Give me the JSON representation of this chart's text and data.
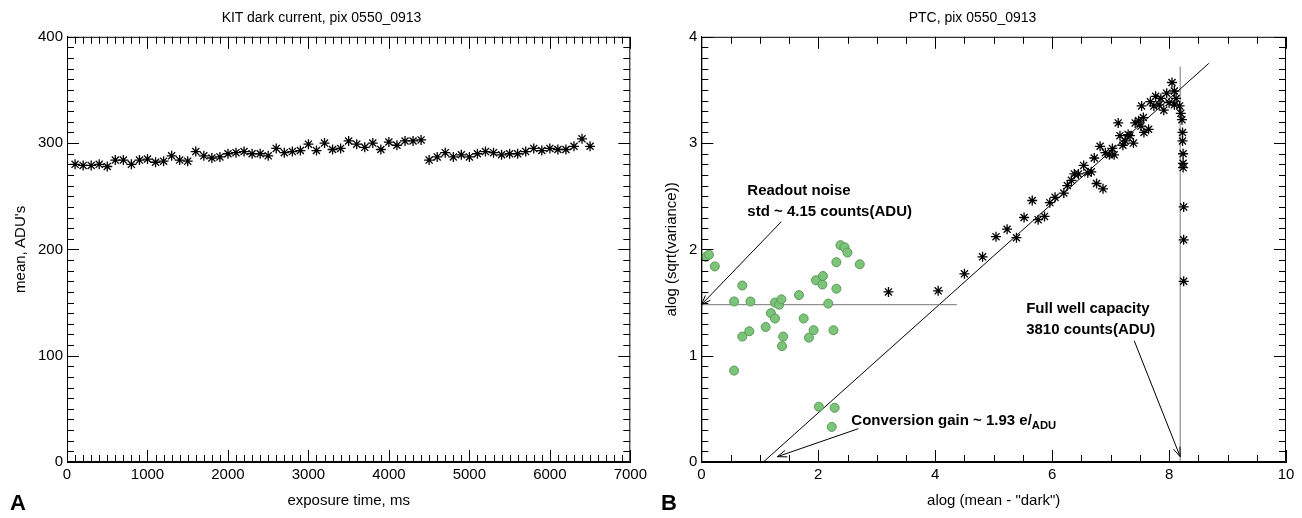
{
  "chart_data": [
    {
      "type": "scatter",
      "title": "KIT dark current, pix 0550_0913",
      "xlabel": "exposure time, ms",
      "ylabel": "mean, ADU's",
      "marker": "cross",
      "legend": false,
      "annotations": [
        "A"
      ],
      "xlim": [
        0,
        7000
      ],
      "ylim": [
        0,
        400
      ],
      "xticks": [
        0,
        {
          "value": 100,
          "label": null
        },
        {
          "value": 200,
          "label": null
        },
        {
          "value": 300,
          "label": null
        },
        {
          "value": 400,
          "label": null
        },
        {
          "value": 500,
          "label": null
        },
        {
          "value": 600,
          "label": null
        },
        {
          "value": 700,
          "label": null
        },
        {
          "value": 800,
          "label": null
        },
        {
          "value": 900,
          "label": null
        },
        1000,
        {
          "value": 1100,
          "label": null
        },
        {
          "value": 1200,
          "label": null
        },
        {
          "value": 1300,
          "label": null
        },
        {
          "value": 1400,
          "label": null
        },
        {
          "value": 1500,
          "label": null
        },
        {
          "value": 1600,
          "label": null
        },
        {
          "value": 1700,
          "label": null
        },
        {
          "value": 1800,
          "label": null
        },
        {
          "value": 1900,
          "label": null
        },
        2000,
        {
          "value": 2100,
          "label": null
        },
        {
          "value": 2200,
          "label": null
        },
        {
          "value": 2300,
          "label": null
        },
        {
          "value": 2400,
          "label": null
        },
        {
          "value": 2500,
          "label": null
        },
        {
          "value": 2600,
          "label": null
        },
        {
          "value": 2700,
          "label": null
        },
        {
          "value": 2800,
          "label": null
        },
        {
          "value": 2900,
          "label": null
        },
        3000,
        {
          "value": 3100,
          "label": null
        },
        {
          "value": 3200,
          "label": null
        },
        {
          "value": 3300,
          "label": null
        },
        {
          "value": 3400,
          "label": null
        },
        {
          "value": 3500,
          "label": null
        },
        {
          "value": 3600,
          "label": null
        },
        {
          "value": 3700,
          "label": null
        },
        {
          "value": 3800,
          "label": null
        },
        {
          "value": 3900,
          "label": null
        },
        4000,
        {
          "value": 4100,
          "label": null
        },
        {
          "value": 4200,
          "label": null
        },
        {
          "value": 4300,
          "label": null
        },
        {
          "value": 4400,
          "label": null
        },
        {
          "value": 4500,
          "label": null
        },
        {
          "value": 4600,
          "label": null
        },
        {
          "value": 4700,
          "label": null
        },
        {
          "value": 4800,
          "label": null
        },
        {
          "value": 4900,
          "label": null
        },
        5000,
        {
          "value": 5100,
          "label": null
        },
        {
          "value": 5200,
          "label": null
        },
        {
          "value": 5300,
          "label": null
        },
        {
          "value": 5400,
          "label": null
        },
        {
          "value": 5500,
          "label": null
        },
        {
          "value": 5600,
          "label": null
        },
        {
          "value": 5700,
          "label": null
        },
        {
          "value": 5800,
          "label": null
        },
        {
          "value": 5900,
          "label": null
        },
        6000,
        {
          "value": 6100,
          "label": null
        },
        {
          "value": 6200,
          "label": null
        },
        {
          "value": 6300,
          "label": null
        },
        {
          "value": 6400,
          "label": null
        },
        {
          "value": 6500,
          "label": null
        },
        {
          "value": 6600,
          "label": null
        },
        {
          "value": 6700,
          "label": null
        },
        {
          "value": 6800,
          "label": null
        },
        {
          "value": 6900,
          "label": null
        },
        7000
      ],
      "yticks": [
        0,
        {
          "value": 10,
          "label": null
        },
        {
          "value": 20,
          "label": null
        },
        {
          "value": 30,
          "label": null
        },
        {
          "value": 40,
          "label": null
        },
        {
          "value": 50,
          "label": null
        },
        {
          "value": 60,
          "label": null
        },
        {
          "value": 70,
          "label": null
        },
        {
          "value": 80,
          "label": null
        },
        {
          "value": 90,
          "label": null
        },
        100,
        {
          "value": 110,
          "label": null
        },
        {
          "value": 120,
          "label": null
        },
        {
          "value": 130,
          "label": null
        },
        {
          "value": 140,
          "label": null
        },
        {
          "value": 150,
          "label": null
        },
        {
          "value": 160,
          "label": null
        },
        {
          "value": 170,
          "label": null
        },
        {
          "value": 180,
          "label": null
        },
        {
          "value": 190,
          "label": null
        },
        200,
        {
          "value": 210,
          "label": null
        },
        {
          "value": 220,
          "label": null
        },
        {
          "value": 230,
          "label": null
        },
        {
          "value": 240,
          "label": null
        },
        {
          "value": 250,
          "label": null
        },
        {
          "value": 260,
          "label": null
        },
        {
          "value": 270,
          "label": null
        },
        {
          "value": 280,
          "label": null
        },
        {
          "value": 290,
          "label": null
        },
        300,
        {
          "value": 310,
          "label": null
        },
        {
          "value": 320,
          "label": null
        },
        {
          "value": 330,
          "label": null
        },
        {
          "value": 340,
          "label": null
        },
        {
          "value": 350,
          "label": null
        },
        {
          "value": 360,
          "label": null
        },
        {
          "value": 370,
          "label": null
        },
        {
          "value": 380,
          "label": null
        },
        {
          "value": 390,
          "label": null
        },
        400
      ],
      "x": [
        100,
        200,
        300,
        400,
        500,
        600,
        700,
        800,
        900,
        1000,
        1100,
        1200,
        1300,
        1400,
        1500,
        1600,
        1700,
        1800,
        1900,
        2000,
        2100,
        2200,
        2300,
        2400,
        2500,
        2600,
        2700,
        2800,
        2900,
        3000,
        3100,
        3200,
        3300,
        3400,
        3500,
        3600,
        3700,
        3800,
        3900,
        4000,
        4100,
        4200,
        4300,
        4400,
        4500,
        4600,
        4700,
        4800,
        4900,
        5000,
        5100,
        5200,
        5300,
        5400,
        5500,
        5600,
        5700,
        5800,
        5900,
        6000,
        6100,
        6200,
        6300,
        6400,
        6500
      ],
      "series": [
        {
          "color": "#000000",
          "values": [
            280,
            279,
            279,
            280,
            278,
            284,
            284,
            280,
            284,
            285,
            282,
            283,
            288,
            284,
            283,
            292,
            288,
            286,
            287,
            290,
            291,
            292,
            290,
            290,
            288,
            295,
            291,
            292,
            293,
            299,
            293,
            300,
            294,
            295,
            302,
            299,
            296,
            300,
            294,
            301,
            298,
            302,
            302,
            303,
            284,
            287,
            291,
            287,
            289,
            287,
            290,
            292,
            291,
            289,
            290,
            290,
            292,
            295,
            293,
            295,
            294,
            294,
            297,
            304,
            297
          ]
        }
      ]
    },
    {
      "type": "scatter",
      "title": "PTC, pix 0550_0913",
      "xlabel": "alog (mean - \"dark\")",
      "ylabel": "alog (sqrt(variance))",
      "legend": false,
      "annotations": [
        {
          "text": "Readout noise\nstd ~ 4.15 counts(ADU)",
          "x": 0,
          "y": 1.48
        },
        {
          "text": "Conversion gain ~ 1.93 e/$_{ADU}$",
          "x": 1.3,
          "y": 0.05
        },
        {
          "text": "Full well capacity\n3810 counts(ADU)",
          "x": 8.19,
          "y": 0.05
        },
        "B"
      ],
      "xlim": [
        0,
        10
      ],
      "ylim": [
        0,
        4
      ],
      "xticks": [
        0,
        {
          "value": 0.5,
          "label": null
        },
        {
          "value": 1,
          "label": null
        },
        {
          "value": 1.5,
          "label": null
        },
        2,
        {
          "value": 2.5,
          "label": null
        },
        {
          "value": 3,
          "label": null
        },
        {
          "value": 3.5,
          "label": null
        },
        4,
        {
          "value": 4.5,
          "label": null
        },
        {
          "value": 5,
          "label": null
        },
        {
          "value": 5.5,
          "label": null
        },
        6,
        {
          "value": 6.5,
          "label": null
        },
        {
          "value": 7,
          "label": null
        },
        {
          "value": 7.5,
          "label": null
        },
        8,
        {
          "value": 8.5,
          "label": null
        },
        {
          "value": 9,
          "label": null
        },
        {
          "value": 9.5,
          "label": null
        },
        10
      ],
      "yticks": [
        0,
        {
          "value": 0.1,
          "label": null
        },
        {
          "value": 0.2,
          "label": null
        },
        {
          "value": 0.3,
          "label": null
        },
        {
          "value": 0.4,
          "label": null
        },
        {
          "value": 0.5,
          "label": null
        },
        {
          "value": 0.6,
          "label": null
        },
        {
          "value": 0.7,
          "label": null
        },
        {
          "value": 0.8,
          "label": null
        },
        {
          "value": 0.9,
          "label": null
        },
        1,
        {
          "value": 1.1,
          "label": null
        },
        {
          "value": 1.2,
          "label": null
        },
        {
          "value": 1.3,
          "label": null
        },
        {
          "value": 1.4,
          "label": null
        },
        {
          "value": 1.5,
          "label": null
        },
        {
          "value": 1.6,
          "label": null
        },
        {
          "value": 1.7,
          "label": null
        },
        {
          "value": 1.8,
          "label": null
        },
        {
          "value": 1.9,
          "label": null
        },
        2,
        {
          "value": 2.1,
          "label": null
        },
        {
          "value": 2.2,
          "label": null
        },
        {
          "value": 2.3,
          "label": null
        },
        {
          "value": 2.4,
          "label": null
        },
        {
          "value": 2.5,
          "label": null
        },
        {
          "value": 2.6,
          "label": null
        },
        {
          "value": 2.7,
          "label": null
        },
        {
          "value": 2.8,
          "label": null
        },
        {
          "value": 2.9,
          "label": null
        },
        3,
        {
          "value": 3.1,
          "label": null
        },
        {
          "value": 3.2,
          "label": null
        },
        {
          "value": 3.3,
          "label": null
        },
        {
          "value": 3.4,
          "label": null
        },
        {
          "value": 3.5,
          "label": null
        },
        {
          "value": 3.6,
          "label": null
        },
        {
          "value": 3.7,
          "label": null
        },
        {
          "value": 3.8,
          "label": null
        },
        {
          "value": 3.9,
          "label": null
        },
        4
      ],
      "series": [
        {
          "type": "scatter",
          "marker": "circle",
          "color": "#7cc47a",
          "x": [
            0.08,
            0.13,
            0.23,
            0.7,
            0.56,
            0.84,
            0.7,
            0.82,
            0.56,
            1.1,
            1.19,
            1.26,
            1.26,
            1.33,
            1.37,
            1.4,
            1.38,
            1.67,
            1.75,
            1.84,
            1.92,
            1.96,
            2.07,
            2.08,
            2.17,
            2.26,
            2.31,
            2.31,
            2.38,
            2.45,
            2.5,
            2.71,
            2.01,
            2.28,
            2.23
          ],
          "values": [
            1.93,
            1.95,
            1.84,
            1.66,
            1.51,
            1.51,
            1.18,
            1.23,
            0.86,
            1.27,
            1.4,
            1.35,
            1.5,
            1.48,
            1.53,
            1.18,
            1.09,
            1.57,
            1.35,
            1.17,
            1.24,
            1.71,
            1.67,
            1.75,
            1.49,
            1.24,
            1.63,
            1.88,
            2.04,
            2.02,
            1.97,
            1.86,
            0.52,
            0.51,
            0.33
          ]
        },
        {
          "type": "scatter",
          "marker": "cross",
          "color": "#000000",
          "x": [
            3.2,
            4.05,
            4.5,
            4.81,
            5.04,
            5.23,
            5.39,
            5.52,
            5.76,
            5.87,
            5.66,
            5.96,
            6.05,
            6.2,
            6.26,
            6.33,
            6.38,
            6.45,
            6.54,
            6.61,
            6.67,
            6.76,
            6.72,
            6.82,
            6.87,
            6.91,
            6.98,
            7.06,
            7.03,
            7.13,
            7.16,
            7.21,
            7.25,
            7.3,
            7.33,
            7.39,
            7.42,
            7.48,
            7.52,
            7.56,
            7.57,
            7.65,
            7.68,
            7.53,
            7.74,
            7.77,
            7.83,
            7.86,
            7.91,
            7.96,
            8.0,
            8.05,
            8.09,
            8.09,
            8.12,
            8.18,
            8.2,
            8.22,
            8.23,
            8.23,
            8.24,
            8.24,
            8.24,
            8.25,
            8.25,
            8.25
          ],
          "values": [
            1.6,
            1.61,
            1.77,
            1.93,
            2.12,
            2.19,
            2.11,
            2.3,
            2.28,
            2.31,
            2.46,
            2.44,
            2.49,
            2.53,
            2.6,
            2.65,
            2.71,
            2.71,
            2.79,
            2.72,
            2.73,
            2.62,
            2.86,
            2.97,
            2.57,
            2.91,
            2.89,
            2.89,
            2.95,
            3.19,
            3.07,
            2.98,
            3.02,
            3.08,
            3.07,
            3.0,
            3.19,
            3.21,
            3.16,
            3.24,
            3.1,
            3.13,
            3.39,
            3.35,
            3.35,
            3.44,
            3.36,
            3.42,
            3.31,
            3.47,
            3.38,
            3.57,
            3.49,
            3.36,
            3.42,
            3.35,
            3.28,
            3.22,
            3.1,
            3.02,
            2.9,
            2.81,
            2.77,
            2.4,
            2.09,
            1.7
          ]
        },
        {
          "type": "line",
          "marker": "none",
          "line_style": "solid",
          "color": "#777777",
          "x": [
            0,
            4.37
          ],
          "values": [
            1.48,
            1.48
          ]
        },
        {
          "type": "line",
          "marker": "none",
          "line_style": "solid",
          "color": "#000000",
          "x": [
            1.06,
            8.68
          ],
          "values": [
            0,
            3.75
          ]
        },
        {
          "type": "line",
          "marker": "none",
          "line_style": "solid",
          "color": "#777777",
          "x": [
            8.19,
            8.19
          ],
          "values": [
            0,
            3.72
          ]
        }
      ]
    }
  ]
}
